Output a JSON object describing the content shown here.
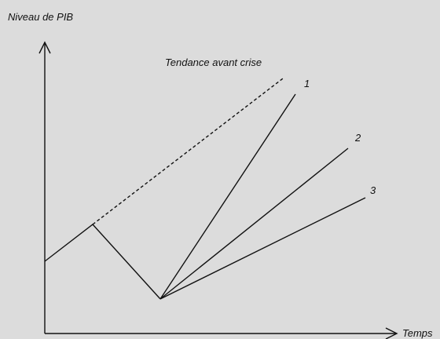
{
  "y_axis_label": "Niveau de PIB",
  "x_axis_label": "Temps",
  "trend_label": "Tendance avant crise",
  "scenarios": [
    "1",
    "2",
    "3"
  ]
}
